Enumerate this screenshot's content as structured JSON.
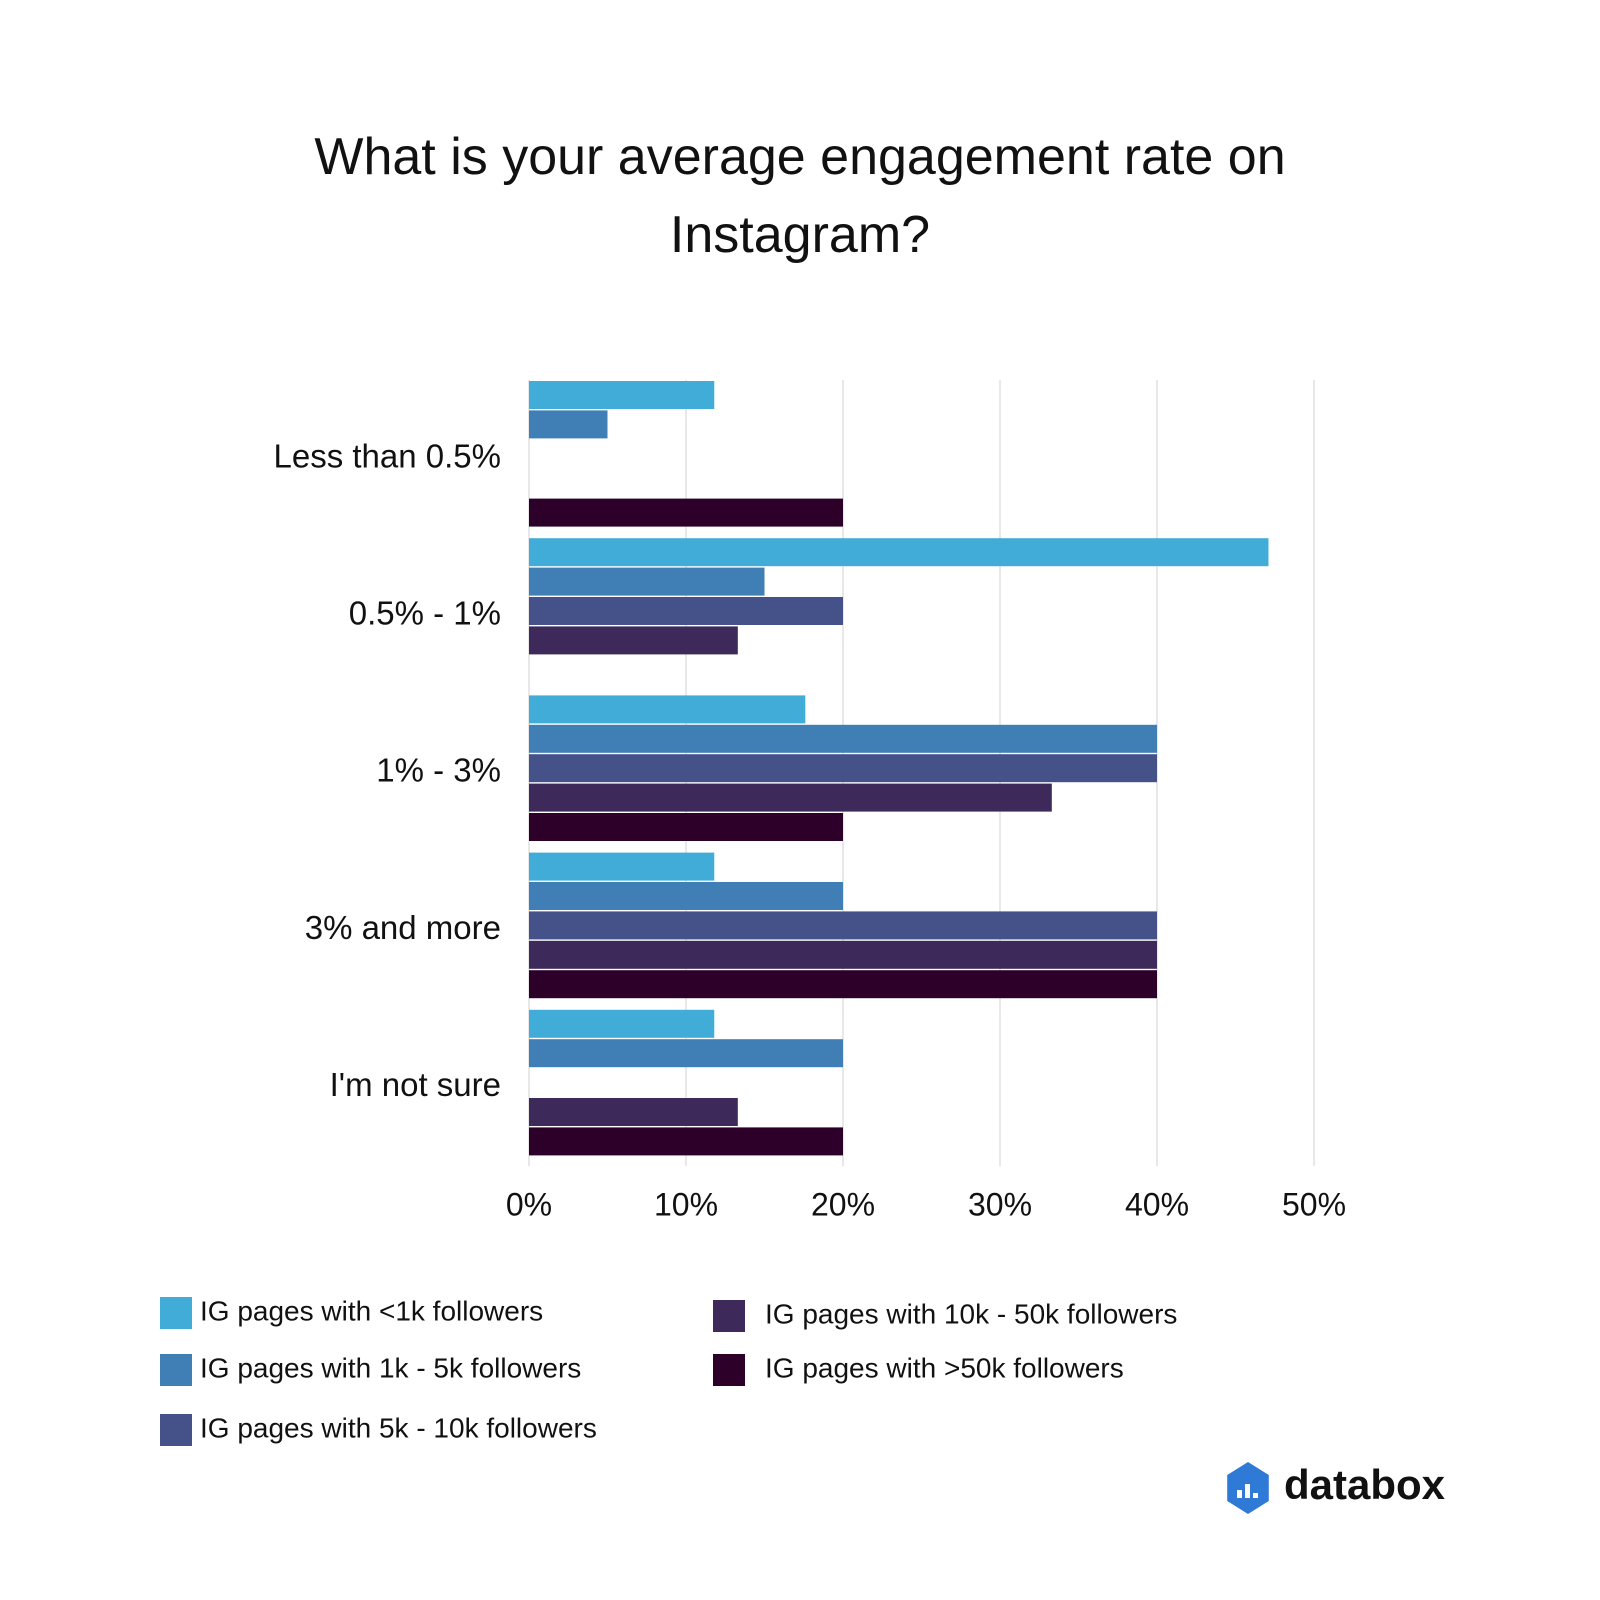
{
  "chart_data": {
    "type": "hbar",
    "title": "What is your average engagement rate on Instagram?",
    "categories": [
      "Less than 0.5%",
      "0.5% - 1%",
      "1% - 3%",
      "3% and more",
      "I'm not sure"
    ],
    "series": [
      {
        "name": "IG pages with <1k followers",
        "color": "#42acd8",
        "values": [
          11.8,
          47.1,
          17.6,
          11.8,
          11.8
        ]
      },
      {
        "name": "IG pages with 1k - 5k followers",
        "color": "#3f7fb5",
        "values": [
          5.0,
          15.0,
          40,
          20,
          20
        ]
      },
      {
        "name": "IG pages with 5k - 10k followers",
        "color": "#45528a",
        "values": [
          0,
          20,
          40,
          40,
          0
        ]
      },
      {
        "name": "IG pages with 10k - 50k followers",
        "color": "#3d2a5b",
        "values": [
          0,
          13.3,
          33.3,
          40,
          13.3
        ]
      },
      {
        "name": "IG pages with >50k followers",
        "color": "#2c0029",
        "values": [
          20,
          0,
          20,
          40,
          20
        ]
      }
    ],
    "xlim": [
      0,
      50
    ],
    "xticks": [
      {
        "value": 0,
        "label": "0%"
      },
      {
        "value": 10,
        "label": "10%"
      },
      {
        "value": 20,
        "label": "20%"
      },
      {
        "value": 30,
        "label": "30%"
      },
      {
        "value": 40,
        "label": "40%"
      },
      {
        "value": 50,
        "label": "50%"
      }
    ],
    "grid": true,
    "logo": "databox"
  }
}
